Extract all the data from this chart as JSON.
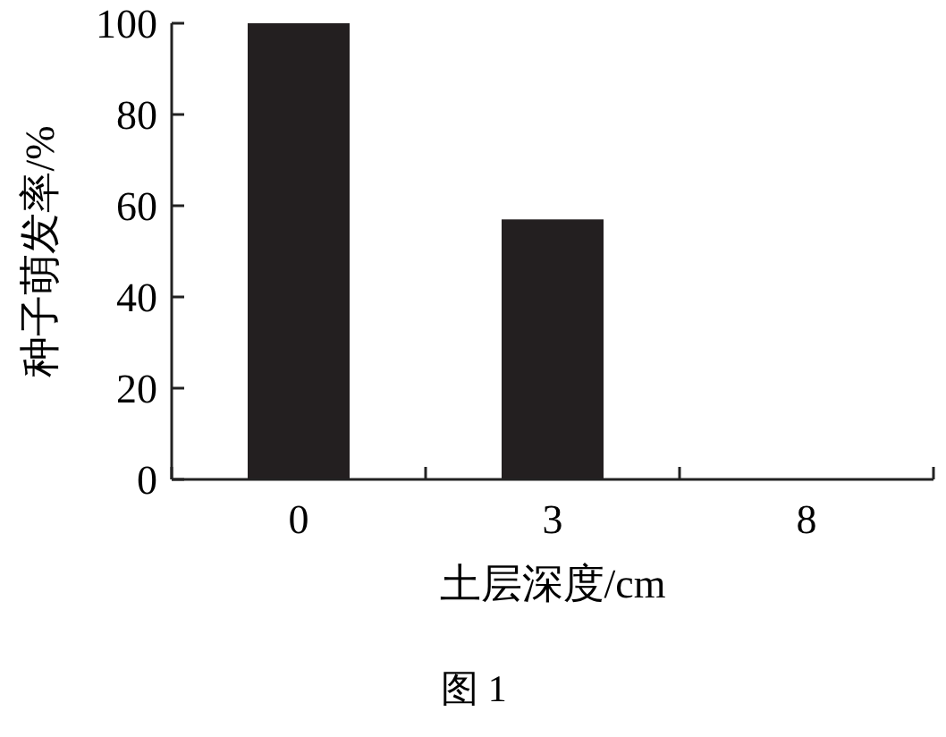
{
  "chart_data": {
    "type": "bar",
    "xlabel": "土层深度/cm",
    "ylabel": "种子萌发率/%",
    "categories": [
      "0",
      "3",
      "8"
    ],
    "values": [
      100,
      57,
      0
    ],
    "color": "#231f20",
    "ylim": [
      0,
      100
    ],
    "yticks": [
      0,
      20,
      40,
      60,
      80,
      100
    ],
    "annotations": [
      "图 1"
    ]
  }
}
